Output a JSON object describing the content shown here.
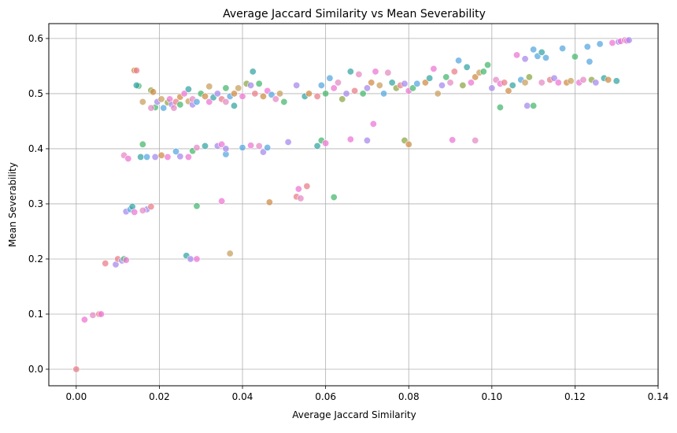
{
  "chart_data": {
    "type": "scatter",
    "title": "Average Jaccard Similarity vs Mean Severability",
    "xlabel": "Average Jaccard Similarity",
    "ylabel": "Mean Severability",
    "xlim": [
      -0.0066,
      0.14
    ],
    "ylim": [
      -0.03,
      0.627
    ],
    "x_ticks": [
      0.0,
      0.02,
      0.04,
      0.06,
      0.08,
      0.1,
      0.12,
      0.14
    ],
    "x_tick_labels": [
      "0.00",
      "0.02",
      "0.04",
      "0.06",
      "0.08",
      "0.10",
      "0.12",
      "0.14"
    ],
    "y_ticks": [
      0.0,
      0.1,
      0.2,
      0.3,
      0.4,
      0.5,
      0.6
    ],
    "y_tick_labels": [
      "0.0",
      "0.1",
      "0.2",
      "0.3",
      "0.4",
      "0.5",
      "0.6"
    ],
    "grid": true,
    "legend": "none",
    "marker_alpha": 0.75,
    "palette": [
      "#e8808a",
      "#c9a060",
      "#4ab870",
      "#3aa6a6",
      "#5aa8e0",
      "#a78bec",
      "#ec78d4",
      "#8ea848",
      "#d08d4a",
      "#e48cc4"
    ],
    "points": [
      [
        0.0,
        0.0,
        0
      ],
      [
        0.002,
        0.09,
        6
      ],
      [
        0.004,
        0.098,
        9
      ],
      [
        0.0055,
        0.1,
        0
      ],
      [
        0.006,
        0.1,
        6
      ],
      [
        0.007,
        0.192,
        0
      ],
      [
        0.0095,
        0.19,
        5
      ],
      [
        0.01,
        0.2,
        0
      ],
      [
        0.011,
        0.197,
        5
      ],
      [
        0.0115,
        0.2,
        2
      ],
      [
        0.012,
        0.198,
        6
      ],
      [
        0.012,
        0.286,
        5
      ],
      [
        0.013,
        0.29,
        4
      ],
      [
        0.0135,
        0.295,
        3
      ],
      [
        0.014,
        0.285,
        6
      ],
      [
        0.017,
        0.29,
        5
      ],
      [
        0.018,
        0.295,
        0
      ],
      [
        0.016,
        0.288,
        9
      ],
      [
        0.0115,
        0.388,
        9
      ],
      [
        0.0125,
        0.382,
        6
      ],
      [
        0.0155,
        0.385,
        3
      ],
      [
        0.016,
        0.408,
        2
      ],
      [
        0.017,
        0.385,
        4
      ],
      [
        0.019,
        0.385,
        5
      ],
      [
        0.0205,
        0.388,
        8
      ],
      [
        0.022,
        0.385,
        6
      ],
      [
        0.024,
        0.395,
        4
      ],
      [
        0.025,
        0.386,
        5
      ],
      [
        0.027,
        0.385,
        6
      ],
      [
        0.028,
        0.396,
        2
      ],
      [
        0.029,
        0.402,
        9
      ],
      [
        0.031,
        0.405,
        3
      ],
      [
        0.034,
        0.405,
        5
      ],
      [
        0.035,
        0.408,
        6
      ],
      [
        0.036,
        0.39,
        4
      ],
      [
        0.036,
        0.4,
        5
      ],
      [
        0.04,
        0.402,
        4
      ],
      [
        0.042,
        0.406,
        6
      ],
      [
        0.044,
        0.405,
        9
      ],
      [
        0.045,
        0.394,
        5
      ],
      [
        0.046,
        0.402,
        4
      ],
      [
        0.051,
        0.412,
        5
      ],
      [
        0.058,
        0.405,
        3
      ],
      [
        0.059,
        0.415,
        2
      ],
      [
        0.06,
        0.41,
        6
      ],
      [
        0.066,
        0.417,
        6
      ],
      [
        0.07,
        0.415,
        5
      ],
      [
        0.0715,
        0.445,
        6
      ],
      [
        0.079,
        0.415,
        7
      ],
      [
        0.08,
        0.408,
        8
      ],
      [
        0.0905,
        0.416,
        6
      ],
      [
        0.096,
        0.415,
        9
      ],
      [
        0.029,
        0.296,
        2
      ],
      [
        0.035,
        0.305,
        6
      ],
      [
        0.037,
        0.21,
        1
      ],
      [
        0.0265,
        0.206,
        3
      ],
      [
        0.0275,
        0.2,
        5
      ],
      [
        0.029,
        0.2,
        6
      ],
      [
        0.0465,
        0.303,
        8
      ],
      [
        0.053,
        0.313,
        0
      ],
      [
        0.0535,
        0.327,
        6
      ],
      [
        0.054,
        0.31,
        9
      ],
      [
        0.0555,
        0.332,
        0
      ],
      [
        0.062,
        0.312,
        2
      ],
      [
        0.014,
        0.542,
        8
      ],
      [
        0.0145,
        0.542,
        0
      ],
      [
        0.015,
        0.514,
        2
      ],
      [
        0.0145,
        0.515,
        3
      ],
      [
        0.016,
        0.485,
        1
      ],
      [
        0.018,
        0.506,
        7
      ],
      [
        0.0185,
        0.503,
        8
      ],
      [
        0.019,
        0.475,
        2
      ],
      [
        0.018,
        0.474,
        9
      ],
      [
        0.0195,
        0.485,
        5
      ],
      [
        0.0205,
        0.49,
        1
      ],
      [
        0.021,
        0.474,
        4
      ],
      [
        0.022,
        0.484,
        7
      ],
      [
        0.0225,
        0.49,
        6
      ],
      [
        0.023,
        0.48,
        5
      ],
      [
        0.0235,
        0.474,
        9
      ],
      [
        0.024,
        0.485,
        0
      ],
      [
        0.025,
        0.494,
        8
      ],
      [
        0.025,
        0.48,
        2
      ],
      [
        0.026,
        0.5,
        6
      ],
      [
        0.027,
        0.508,
        3
      ],
      [
        0.027,
        0.486,
        1
      ],
      [
        0.028,
        0.48,
        5
      ],
      [
        0.028,
        0.49,
        9
      ],
      [
        0.029,
        0.485,
        4
      ],
      [
        0.03,
        0.5,
        2
      ],
      [
        0.031,
        0.495,
        8
      ],
      [
        0.032,
        0.513,
        1
      ],
      [
        0.032,
        0.485,
        6
      ],
      [
        0.033,
        0.493,
        3
      ],
      [
        0.034,
        0.5,
        5
      ],
      [
        0.035,
        0.49,
        0
      ],
      [
        0.036,
        0.51,
        2
      ],
      [
        0.036,
        0.485,
        9
      ],
      [
        0.037,
        0.495,
        4
      ],
      [
        0.038,
        0.5,
        8
      ],
      [
        0.038,
        0.478,
        3
      ],
      [
        0.039,
        0.51,
        1
      ],
      [
        0.04,
        0.495,
        6
      ],
      [
        0.041,
        0.518,
        7
      ],
      [
        0.042,
        0.515,
        5
      ],
      [
        0.0425,
        0.54,
        3
      ],
      [
        0.043,
        0.5,
        0
      ],
      [
        0.044,
        0.518,
        2
      ],
      [
        0.045,
        0.495,
        8
      ],
      [
        0.046,
        0.505,
        6
      ],
      [
        0.047,
        0.498,
        4
      ],
      [
        0.048,
        0.49,
        9
      ],
      [
        0.049,
        0.5,
        1
      ],
      [
        0.05,
        0.485,
        2
      ],
      [
        0.053,
        0.515,
        5
      ],
      [
        0.055,
        0.495,
        3
      ],
      [
        0.056,
        0.5,
        8
      ],
      [
        0.058,
        0.495,
        0
      ],
      [
        0.059,
        0.515,
        4
      ],
      [
        0.06,
        0.5,
        2
      ],
      [
        0.061,
        0.528,
        4
      ],
      [
        0.062,
        0.51,
        6
      ],
      [
        0.063,
        0.52,
        9
      ],
      [
        0.064,
        0.49,
        7
      ],
      [
        0.065,
        0.5,
        5
      ],
      [
        0.066,
        0.54,
        3
      ],
      [
        0.067,
        0.505,
        0
      ],
      [
        0.068,
        0.535,
        9
      ],
      [
        0.069,
        0.5,
        2
      ],
      [
        0.07,
        0.51,
        5
      ],
      [
        0.071,
        0.52,
        8
      ],
      [
        0.072,
        0.54,
        6
      ],
      [
        0.073,
        0.515,
        1
      ],
      [
        0.074,
        0.5,
        4
      ],
      [
        0.075,
        0.538,
        9
      ],
      [
        0.076,
        0.52,
        3
      ],
      [
        0.077,
        0.51,
        7
      ],
      [
        0.078,
        0.515,
        0
      ],
      [
        0.079,
        0.518,
        5
      ],
      [
        0.08,
        0.505,
        6
      ],
      [
        0.081,
        0.51,
        2
      ],
      [
        0.082,
        0.518,
        4
      ],
      [
        0.084,
        0.52,
        8
      ],
      [
        0.085,
        0.528,
        3
      ],
      [
        0.086,
        0.545,
        6
      ],
      [
        0.087,
        0.5,
        1
      ],
      [
        0.088,
        0.515,
        5
      ],
      [
        0.089,
        0.53,
        2
      ],
      [
        0.09,
        0.52,
        9
      ],
      [
        0.091,
        0.54,
        0
      ],
      [
        0.092,
        0.56,
        4
      ],
      [
        0.093,
        0.515,
        7
      ],
      [
        0.094,
        0.548,
        3
      ],
      [
        0.095,
        0.52,
        6
      ],
      [
        0.096,
        0.53,
        8
      ],
      [
        0.097,
        0.538,
        1
      ],
      [
        0.098,
        0.54,
        2
      ],
      [
        0.099,
        0.552,
        2
      ],
      [
        0.1,
        0.51,
        5
      ],
      [
        0.101,
        0.525,
        9
      ],
      [
        0.102,
        0.518,
        6
      ],
      [
        0.102,
        0.475,
        2
      ],
      [
        0.103,
        0.52,
        0
      ],
      [
        0.104,
        0.505,
        8
      ],
      [
        0.105,
        0.515,
        3
      ],
      [
        0.106,
        0.57,
        6
      ],
      [
        0.107,
        0.525,
        4
      ],
      [
        0.108,
        0.52,
        1
      ],
      [
        0.108,
        0.563,
        5
      ],
      [
        0.1085,
        0.478,
        5
      ],
      [
        0.109,
        0.53,
        7
      ],
      [
        0.11,
        0.58,
        4
      ],
      [
        0.11,
        0.478,
        2
      ],
      [
        0.111,
        0.568,
        4
      ],
      [
        0.112,
        0.575,
        3
      ],
      [
        0.112,
        0.52,
        9
      ],
      [
        0.113,
        0.565,
        4
      ],
      [
        0.114,
        0.525,
        0
      ],
      [
        0.115,
        0.528,
        5
      ],
      [
        0.116,
        0.52,
        6
      ],
      [
        0.117,
        0.582,
        4
      ],
      [
        0.118,
        0.52,
        8
      ],
      [
        0.119,
        0.523,
        1
      ],
      [
        0.12,
        0.567,
        2
      ],
      [
        0.121,
        0.52,
        6
      ],
      [
        0.122,
        0.525,
        9
      ],
      [
        0.123,
        0.585,
        4
      ],
      [
        0.1235,
        0.558,
        4
      ],
      [
        0.124,
        0.525,
        7
      ],
      [
        0.125,
        0.52,
        5
      ],
      [
        0.126,
        0.59,
        4
      ],
      [
        0.127,
        0.528,
        3
      ],
      [
        0.128,
        0.525,
        8
      ],
      [
        0.129,
        0.592,
        6
      ],
      [
        0.13,
        0.523,
        3
      ],
      [
        0.1305,
        0.594,
        5
      ],
      [
        0.131,
        0.595,
        6
      ],
      [
        0.132,
        0.597,
        9
      ],
      [
        0.1325,
        0.596,
        6
      ],
      [
        0.133,
        0.597,
        5
      ]
    ]
  }
}
